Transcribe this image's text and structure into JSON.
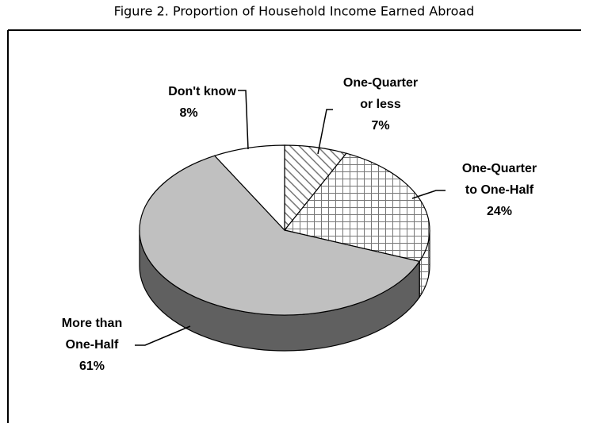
{
  "chart_data": {
    "type": "pie3d",
    "title": "Figure 2. Proportion of Household Income Earned Abroad",
    "categories": [
      [
        "One-Quarter",
        "or less"
      ],
      [
        "One-Quarter",
        "to One-Half"
      ],
      [
        "More than",
        "One-Half"
      ],
      [
        "Don't know"
      ]
    ],
    "values": [
      7,
      24,
      61,
      8
    ],
    "value_labels": [
      "7%",
      "24%",
      "61%",
      "8%"
    ],
    "colors": [
      "#ffffff",
      "#ffffff",
      "#c0c0c0",
      "#ffffff"
    ],
    "patterns": [
      "diagonal",
      "grid",
      "none",
      "none"
    ]
  }
}
